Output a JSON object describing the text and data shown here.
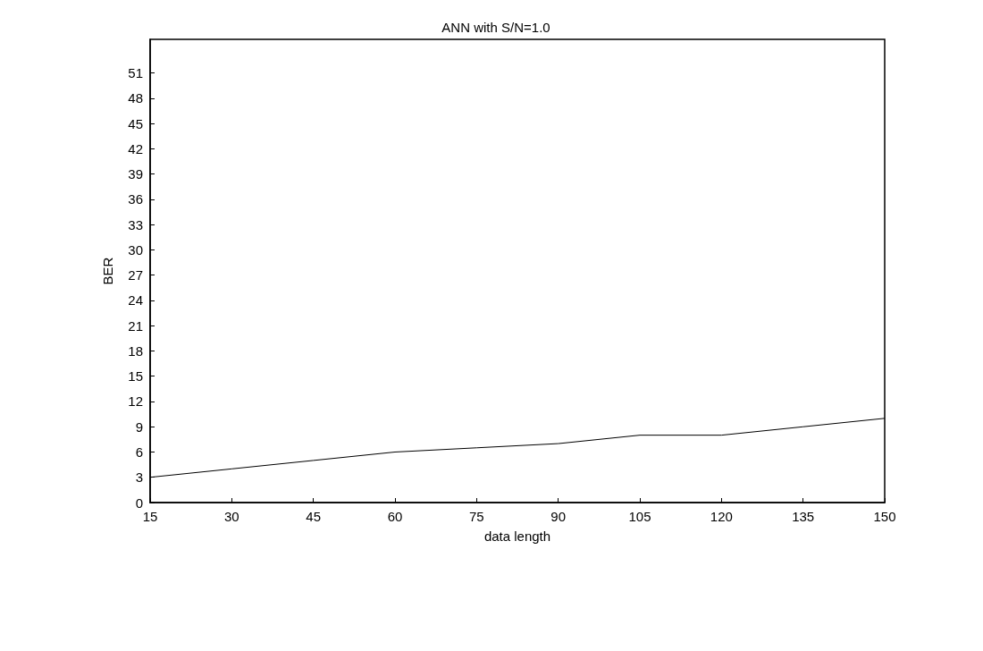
{
  "chart_data": {
    "type": "line",
    "title": "ANN with S/N=1.0",
    "xlabel": "data length",
    "ylabel": "BER",
    "x": [
      15,
      30,
      45,
      60,
      75,
      90,
      105,
      120,
      135,
      150
    ],
    "series": [
      {
        "color": "#000000",
        "values": [
          3,
          4,
          5,
          6,
          6.5,
          7,
          8,
          8,
          9,
          10
        ]
      }
    ],
    "xlim": [
      15,
      150
    ],
    "xticks": [
      15,
      30,
      45,
      60,
      75,
      90,
      105,
      120,
      135,
      150
    ],
    "ylim": [
      0,
      55
    ],
    "yticks": [
      0,
      3,
      6,
      9,
      12,
      15,
      18,
      21,
      24,
      27,
      30,
      33,
      36,
      39,
      42,
      45,
      48,
      51
    ],
    "grid": false,
    "marker": "none",
    "line_style": "solid"
  }
}
